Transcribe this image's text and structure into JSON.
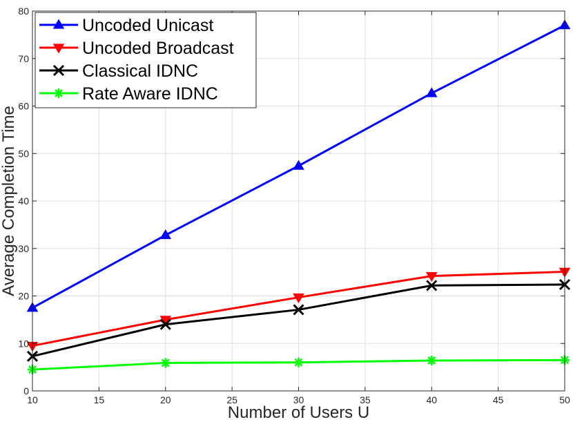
{
  "chart_data": {
    "type": "line",
    "title": "",
    "xlabel": "Number of Users U",
    "ylabel": "Average Completion Time",
    "xlim": [
      10,
      50
    ],
    "ylim": [
      0,
      80
    ],
    "xticks": [
      10,
      15,
      20,
      25,
      30,
      35,
      40,
      45,
      50
    ],
    "yticks": [
      0,
      10,
      20,
      30,
      40,
      50,
      60,
      70,
      80
    ],
    "grid": true,
    "legend_position": "top-left",
    "x": [
      10,
      20,
      30,
      40,
      50
    ],
    "series": [
      {
        "name": "Uncoded Unicast",
        "values": [
          17.5,
          32.8,
          47.4,
          62.7,
          77.0
        ],
        "color": "#0000ff",
        "marker": "triangle-up"
      },
      {
        "name": "Uncoded Broadcast",
        "values": [
          9.5,
          15.0,
          19.7,
          24.2,
          25.1
        ],
        "color": "#ff0000",
        "marker": "triangle-down"
      },
      {
        "name": "Classical IDNC",
        "values": [
          7.3,
          14.0,
          17.1,
          22.2,
          22.4
        ],
        "color": "#000000",
        "marker": "x"
      },
      {
        "name": "Rate Aware IDNC",
        "values": [
          4.5,
          5.9,
          6.0,
          6.4,
          6.5
        ],
        "color": "#00ff00",
        "marker": "asterisk"
      }
    ]
  }
}
